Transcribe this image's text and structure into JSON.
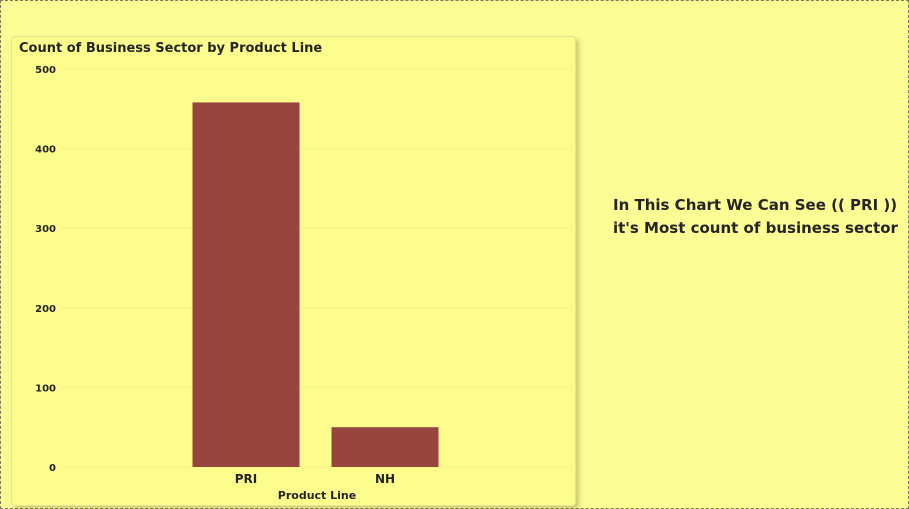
{
  "chart_data": {
    "type": "bar",
    "title": "Count of Business Sector by Product Line",
    "xlabel": "Product Line",
    "ylabel": "",
    "categories": [
      "PRI",
      "NH"
    ],
    "values": [
      458,
      50
    ],
    "ylim": [
      0,
      500
    ],
    "yticks": [
      0,
      100,
      200,
      300,
      400,
      500
    ],
    "grid": true,
    "bar_color": "#96463f"
  },
  "annotation": {
    "line1": "In This Chart We Can See (( PRI ))",
    "line2": "it's Most count of business sector"
  },
  "colors": {
    "page_background": "#fdfd96",
    "card_background": "#fdfd8e",
    "text": "#252423"
  }
}
